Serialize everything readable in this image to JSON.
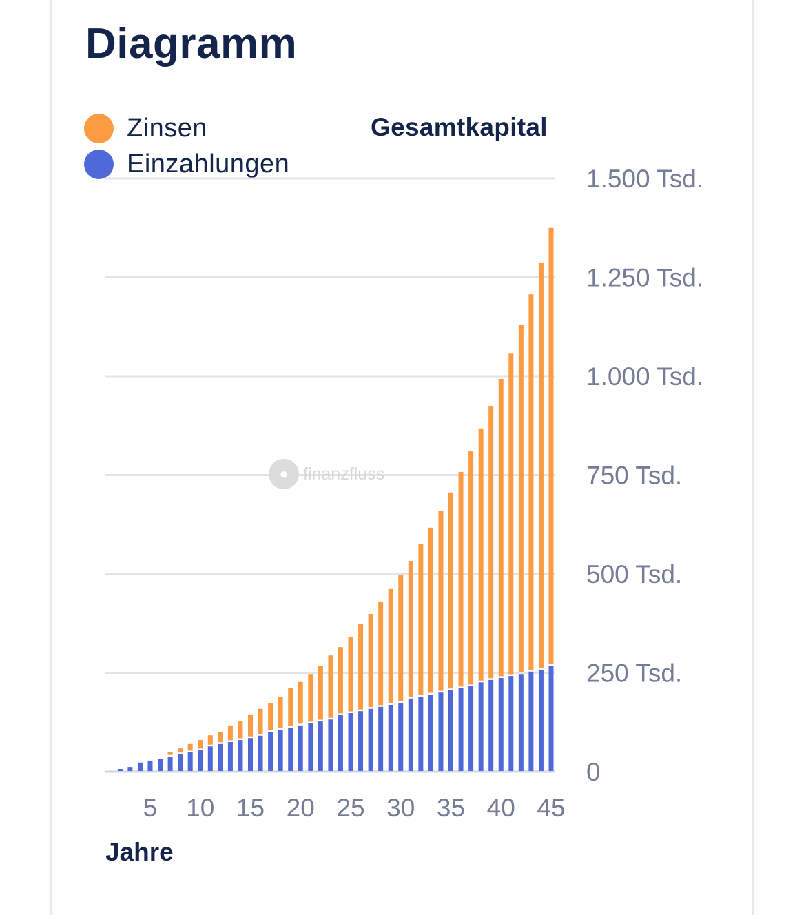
{
  "title": "Diagramm",
  "legend": [
    {
      "label": "Zinsen",
      "color": "#fd9b43"
    },
    {
      "label": "Einzahlungen",
      "color": "#5069d8"
    }
  ],
  "watermark": {
    "icon": "hippo-logo-icon",
    "text": "finanzfluss"
  },
  "chart_data": {
    "type": "bar",
    "stacked": true,
    "title": "Diagramm",
    "xlabel": "Jahre",
    "ylabel": "Gesamtkapital",
    "x": [
      1,
      2,
      3,
      4,
      5,
      6,
      7,
      8,
      9,
      10,
      11,
      12,
      13,
      14,
      15,
      16,
      17,
      18,
      19,
      20,
      21,
      22,
      23,
      24,
      25,
      26,
      27,
      28,
      29,
      30,
      31,
      32,
      33,
      34,
      35,
      36,
      37,
      38,
      39,
      40,
      41,
      42,
      43,
      44,
      45
    ],
    "x_ticks": [
      5,
      10,
      15,
      20,
      25,
      30,
      35,
      40,
      45
    ],
    "x_tick_labels": [
      "5",
      "10",
      "15",
      "20",
      "25",
      "30",
      "35",
      "40",
      "45"
    ],
    "y_ticks": [
      0,
      250,
      500,
      750,
      1000,
      1250,
      1500
    ],
    "y_tick_labels": [
      "0",
      "250 Tsd.",
      "500 Tsd.",
      "750 Tsd.",
      "1.000 Tsd.",
      "1.250 Tsd.",
      "1.500 Tsd."
    ],
    "ylim": [
      0,
      1500
    ],
    "y_unit": "Tsd.",
    "grid": true,
    "legend_position": "top-left",
    "series": [
      {
        "name": "Einzahlungen",
        "color": "#5069d8",
        "values": [
          1,
          7,
          12,
          23,
          28,
          33,
          38,
          44,
          49,
          54,
          64,
          70,
          75,
          80,
          85,
          91,
          101,
          106,
          111,
          117,
          122,
          127,
          132,
          143,
          148,
          153,
          159,
          164,
          169,
          174,
          185,
          190,
          195,
          200,
          206,
          211,
          216,
          226,
          232,
          237,
          242,
          247,
          253,
          258,
          268
        ]
      },
      {
        "name": "Zinsen",
        "color": "#fd9b43",
        "values": [
          0,
          0,
          0,
          0,
          0,
          0,
          11,
          15,
          21,
          26,
          28,
          31,
          42,
          47,
          58,
          68,
          73,
          84,
          100,
          110,
          125,
          141,
          162,
          172,
          193,
          220,
          240,
          266,
          293,
          324,
          348,
          385,
          422,
          459,
          500,
          547,
          594,
          642,
          693,
          756,
          815,
          882,
          954,
          1028,
          1107
        ]
      }
    ],
    "totals": [
      1,
      7,
      12,
      23,
      28,
      33,
      49,
      59,
      70,
      80,
      92,
      101,
      117,
      127,
      143,
      159,
      174,
      190,
      211,
      227,
      247,
      268,
      294,
      315,
      341,
      373,
      399,
      430,
      462,
      498,
      533,
      575,
      617,
      659,
      706,
      758,
      810,
      868,
      925,
      993,
      1057,
      1129,
      1207,
      1286,
      1375
    ]
  }
}
